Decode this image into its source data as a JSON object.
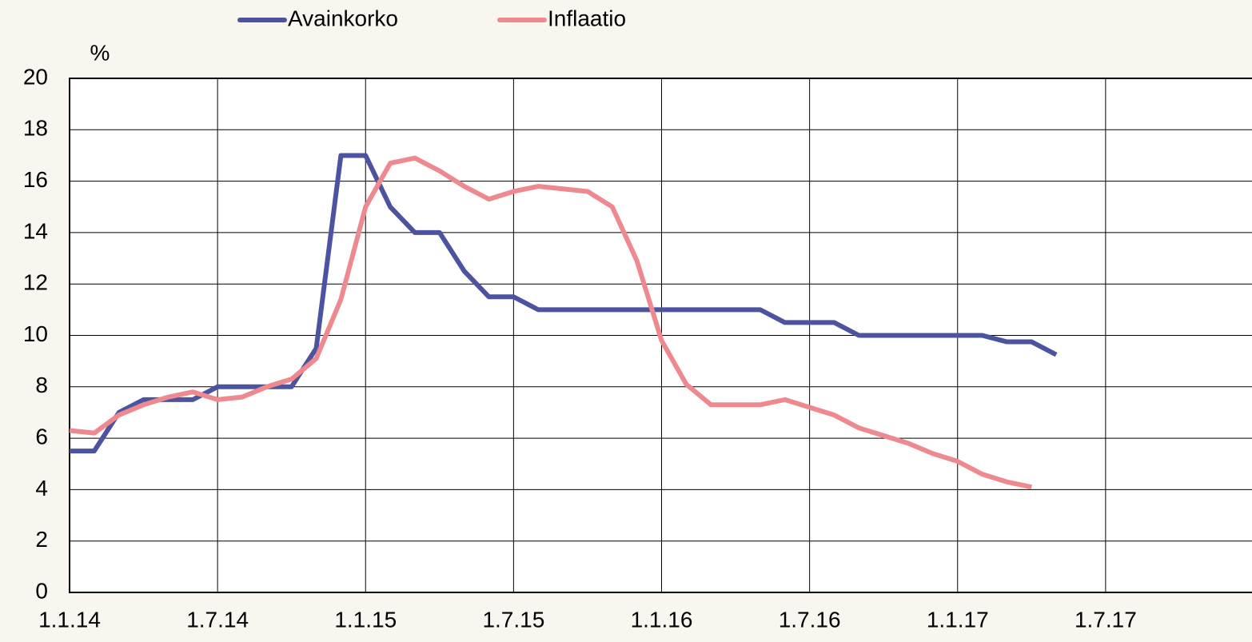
{
  "chart_data": {
    "type": "line",
    "y_label": "%",
    "x": [
      "1.1.14",
      "1.2.14",
      "1.3.14",
      "1.4.14",
      "1.5.14",
      "1.6.14",
      "1.7.14",
      "1.8.14",
      "1.9.14",
      "1.10.14",
      "1.11.14",
      "1.12.14",
      "1.1.15",
      "1.2.15",
      "1.3.15",
      "1.4.15",
      "1.5.15",
      "1.6.15",
      "1.7.15",
      "1.8.15",
      "1.9.15",
      "1.10.15",
      "1.11.15",
      "1.12.15",
      "1.1.16",
      "1.2.16",
      "1.3.16",
      "1.4.16",
      "1.5.16",
      "1.6.16",
      "1.7.16",
      "1.8.16",
      "1.9.16",
      "1.10.16",
      "1.11.16",
      "1.12.16",
      "1.1.17",
      "1.2.17",
      "1.3.17",
      "1.4.17",
      "1.5.17"
    ],
    "series": [
      {
        "name": "Avainkorko",
        "color": "#4c54a0",
        "values": [
          5.5,
          5.5,
          7,
          7.5,
          7.5,
          7.5,
          8,
          8,
          8,
          8,
          9.5,
          17,
          17,
          15,
          14,
          14,
          12.5,
          11.5,
          11.5,
          11,
          11,
          11,
          11,
          11,
          11,
          11,
          11,
          11,
          11,
          10.5,
          10.5,
          10.5,
          10,
          10,
          10,
          10,
          10,
          10,
          9.75,
          9.75,
          9.25
        ]
      },
      {
        "name": "Inflaatio",
        "color": "#ee8a8f",
        "values": [
          6.3,
          6.2,
          6.9,
          7.3,
          7.6,
          7.8,
          7.5,
          7.6,
          8.0,
          8.3,
          9.1,
          11.4,
          15.0,
          16.7,
          16.9,
          16.4,
          15.8,
          15.3,
          15.6,
          15.8,
          15.7,
          15.6,
          15.0,
          12.9,
          9.8,
          8.1,
          7.3,
          7.3,
          7.3,
          7.5,
          7.2,
          6.9,
          6.4,
          6.1,
          5.8,
          5.4,
          5.1,
          4.6,
          4.3,
          4.1,
          null
        ]
      }
    ],
    "xlim": [
      "1.1.14",
      "1.1.18"
    ],
    "xticks": [
      "1.1.14",
      "1.7.14",
      "1.1.15",
      "1.7.15",
      "1.1.16",
      "1.7.16",
      "1.1.17",
      "1.7.17"
    ],
    "ylim": [
      0,
      20
    ],
    "yticks": [
      0,
      2,
      4,
      6,
      8,
      10,
      12,
      14,
      16,
      18,
      20
    ],
    "grid": true,
    "legend": "top"
  }
}
